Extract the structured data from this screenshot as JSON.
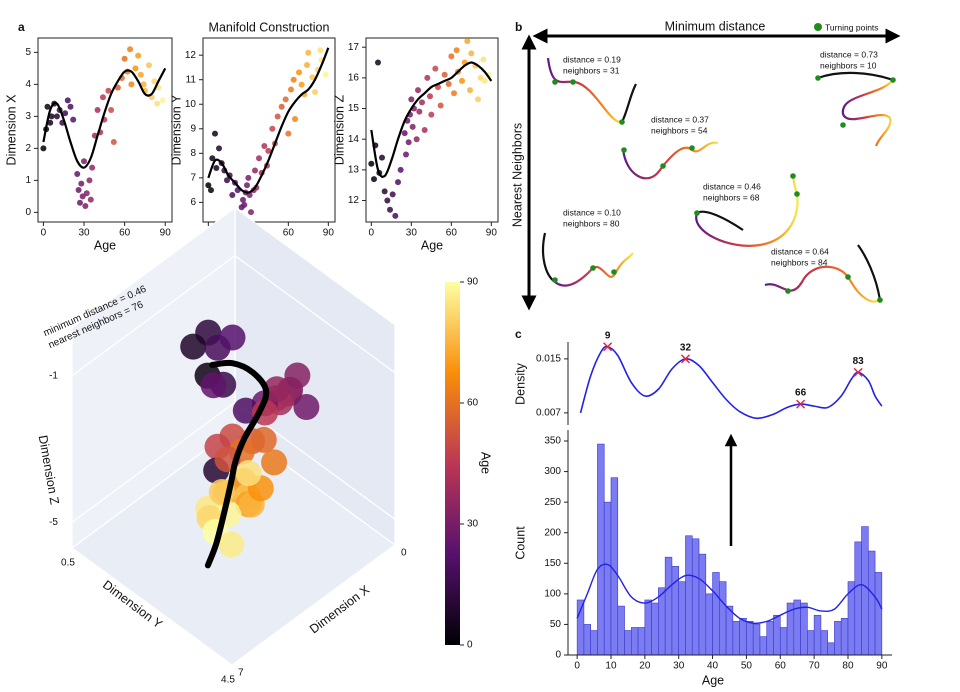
{
  "panel_labels": [
    "a",
    "b",
    "c"
  ],
  "chart_data": [
    {
      "type": "scatter",
      "xlabel": "Age",
      "ylabel": "Dimension X",
      "xlim": [
        -4,
        95
      ],
      "ylim": [
        -0.3,
        5.45
      ],
      "xticks": [
        0,
        30,
        60,
        90
      ],
      "yticks": [
        0,
        1,
        2,
        3,
        4,
        5
      ],
      "colormap": "inferno",
      "clim": [
        0,
        90
      ],
      "x": [
        0,
        2,
        3,
        5,
        6,
        8,
        10,
        12,
        14,
        16,
        18,
        20,
        22,
        25,
        26,
        27,
        28,
        29,
        30,
        31,
        32,
        34,
        35,
        36,
        38,
        40,
        42,
        44,
        45,
        48,
        50,
        52,
        55,
        58,
        60,
        62,
        64,
        65,
        68,
        70,
        72,
        74,
        75,
        78,
        80,
        82,
        84,
        85,
        88
      ],
      "values": [
        2.0,
        2.6,
        3.3,
        2.8,
        3.0,
        3.4,
        3.0,
        3.2,
        2.8,
        3.1,
        3.5,
        3.3,
        2.9,
        1.2,
        0.7,
        0.3,
        0.9,
        0.5,
        1.6,
        0.2,
        0.6,
        1.0,
        0.4,
        1.4,
        2.4,
        3.2,
        2.5,
        3.6,
        2.9,
        3.8,
        3.2,
        2.2,
        3.9,
        4.2,
        4.8,
        4.4,
        5.1,
        4.0,
        4.5,
        4.9,
        4.3,
        4.0,
        3.8,
        4.6,
        3.6,
        4.1,
        3.4,
        3.9,
        3.5
      ],
      "fit": {
        "color": "#000000",
        "x": [
          0,
          5,
          10,
          15,
          20,
          25,
          30,
          35,
          40,
          45,
          50,
          55,
          60,
          65,
          70,
          75,
          80,
          85,
          90
        ],
        "values": [
          2.2,
          3.2,
          3.4,
          2.9,
          2.2,
          1.6,
          1.4,
          1.7,
          2.4,
          3.1,
          3.7,
          4.1,
          4.4,
          4.4,
          4.1,
          3.7,
          3.7,
          4.1,
          4.5
        ]
      }
    },
    {
      "type": "scatter",
      "title": "Manifold Construction",
      "xlabel": "Age",
      "ylabel": "Dimension Y",
      "xlim": [
        -4,
        95
      ],
      "ylim": [
        5.2,
        12.7
      ],
      "xticks": [
        0,
        30,
        60,
        90
      ],
      "yticks": [
        6,
        7,
        8,
        9,
        10,
        11,
        12
      ],
      "colormap": "inferno",
      "clim": [
        0,
        90
      ],
      "x": [
        0,
        2,
        3,
        5,
        6,
        8,
        10,
        12,
        14,
        16,
        18,
        20,
        22,
        25,
        26,
        27,
        28,
        29,
        30,
        31,
        32,
        34,
        35,
        36,
        38,
        40,
        42,
        44,
        45,
        48,
        50,
        52,
        55,
        58,
        60,
        62,
        64,
        65,
        68,
        70,
        72,
        74,
        75,
        78,
        80,
        82,
        84,
        85,
        88
      ],
      "values": [
        6.7,
        6.5,
        7.8,
        8.8,
        7.4,
        8.2,
        7.6,
        7.3,
        6.9,
        7.1,
        6.3,
        6.8,
        6.5,
        5.8,
        6.1,
        5.9,
        6.4,
        6.7,
        7.0,
        6.3,
        5.6,
        6.5,
        7.3,
        6.6,
        7.8,
        7.2,
        8.3,
        7.5,
        8.1,
        9.0,
        8.4,
        9.5,
        9.9,
        10.2,
        8.8,
        10.6,
        11.0,
        9.4,
        11.3,
        10.8,
        10.4,
        11.6,
        12.1,
        11.1,
        10.5,
        11.4,
        12.2,
        11.8,
        11.2
      ],
      "fit": {
        "color": "#000000",
        "x": [
          0,
          5,
          10,
          15,
          20,
          25,
          30,
          35,
          40,
          45,
          50,
          55,
          60,
          65,
          70,
          75,
          80,
          85,
          90
        ],
        "values": [
          7.0,
          7.7,
          7.6,
          7.1,
          6.8,
          6.5,
          6.4,
          6.6,
          7.1,
          7.7,
          8.4,
          9.1,
          9.7,
          10.1,
          10.4,
          10.6,
          11.0,
          11.6,
          12.3
        ]
      }
    },
    {
      "type": "scatter",
      "xlabel": "Age",
      "ylabel": "Dimension Z",
      "xlim": [
        -4,
        95
      ],
      "ylim": [
        11.3,
        17.3
      ],
      "xticks": [
        0,
        30,
        60,
        90
      ],
      "yticks": [
        12,
        13,
        14,
        15,
        16,
        17
      ],
      "colormap": "inferno",
      "clim": [
        0,
        90
      ],
      "x": [
        0,
        2,
        3,
        5,
        6,
        8,
        10,
        12,
        14,
        16,
        18,
        20,
        22,
        25,
        26,
        27,
        28,
        29,
        30,
        31,
        32,
        34,
        35,
        36,
        38,
        40,
        42,
        44,
        45,
        48,
        50,
        52,
        55,
        58,
        60,
        62,
        64,
        65,
        68,
        70,
        72,
        74,
        75,
        78,
        80,
        82,
        84,
        85,
        88
      ],
      "values": [
        13.2,
        12.7,
        13.8,
        16.5,
        12.9,
        13.4,
        12.3,
        12.0,
        11.7,
        12.2,
        11.5,
        12.6,
        13.0,
        14.2,
        13.5,
        14.6,
        13.9,
        14.8,
        15.3,
        14.4,
        15.0,
        14.0,
        15.6,
        14.9,
        15.2,
        14.3,
        16.0,
        15.4,
        14.8,
        16.3,
        15.7,
        15.1,
        16.1,
        15.8,
        16.7,
        15.5,
        16.9,
        16.2,
        15.9,
        16.5,
        17.2,
        15.6,
        16.8,
        16.4,
        15.3,
        16.0,
        16.6,
        15.9,
        16.1
      ],
      "fit": {
        "color": "#000000",
        "x": [
          0,
          5,
          10,
          15,
          20,
          25,
          30,
          35,
          40,
          45,
          50,
          55,
          60,
          65,
          70,
          75,
          80,
          85,
          90
        ],
        "values": [
          14.3,
          13.0,
          12.8,
          13.3,
          14.0,
          14.6,
          15.0,
          15.3,
          15.5,
          15.7,
          15.8,
          15.9,
          16.0,
          16.2,
          16.4,
          16.5,
          16.4,
          16.2,
          15.9
        ]
      }
    },
    {
      "type": "scatter3d",
      "annotation": [
        "minimum distance  = 0.46",
        "nearest neighbors = 76"
      ],
      "xlabel": "Dimension X",
      "ylabel": "Dimension Y",
      "zlabel": "Dimension Z",
      "xlim": [
        7,
        0
      ],
      "ylim": [
        4.5,
        0.5
      ],
      "zlim": [
        -5.7,
        0.3
      ],
      "xticks": [
        0,
        7
      ],
      "yticks": [
        0.5,
        4.5
      ],
      "zticks": [
        -5,
        -1
      ],
      "colormap": "inferno",
      "clim": [
        0,
        90
      ],
      "colorbar_label": "Age",
      "colorbar_ticks": [
        0,
        30,
        60,
        90
      ],
      "points": {
        "x": [
          3.9,
          4.2,
          3.5,
          4.1,
          3.6,
          3.2,
          3.5,
          2.1,
          1.8,
          1.4,
          2.0,
          1.1,
          1.5,
          2.5,
          2.8,
          1.3,
          3.2,
          2.7,
          3.5,
          2.8,
          2.2,
          3.9,
          3.4,
          2.1,
          2.9,
          1.8,
          3.5,
          2.9,
          3.9,
          2.7,
          3.2,
          2.2,
          3.5,
          2.5,
          4.1,
          2.8,
          2.0,
          3.6
        ],
        "y": [
          2.1,
          1.9,
          2.1,
          2.2,
          2.3,
          2.3,
          2.0,
          3.1,
          2.9,
          3.1,
          2.7,
          2.7,
          2.5,
          2.7,
          2.4,
          2.3,
          2.3,
          2.5,
          2.1,
          2.3,
          2.5,
          2.3,
          2.7,
          2.7,
          2.0,
          2.3,
          2.3,
          2.5,
          2.1,
          2.4,
          2.2,
          2.2,
          1.9,
          2.6,
          2.4,
          1.8,
          2.0,
          2.5
        ],
        "z": [
          0.0,
          -0.4,
          -0.6,
          -1.0,
          -1.4,
          -0.3,
          -1.7,
          -1.6,
          -2.0,
          -2.4,
          -2.2,
          -2.0,
          -2.7,
          -2.1,
          -2.4,
          -2.6,
          -3.0,
          -3.2,
          -3.3,
          -3.6,
          -3.4,
          -3.6,
          -3.8,
          -3.9,
          -4.0,
          -3.0,
          -4.4,
          -4.6,
          -4.8,
          -5.0,
          -5.2,
          -5.4,
          -5.4,
          -4.5,
          -5.1,
          -5.1,
          -4.8,
          -5.6
        ],
        "age": [
          12,
          8,
          18,
          3,
          15,
          22,
          25,
          30,
          35,
          28,
          38,
          33,
          40,
          27,
          20,
          36,
          50,
          55,
          48,
          60,
          58,
          10,
          65,
          62,
          52,
          45,
          72,
          78,
          85,
          70,
          88,
          75,
          82,
          68,
          90,
          80,
          84,
          86
        ]
      },
      "trajectory": {
        "color": "#000000",
        "x": [
          3.9,
          3.2,
          2.5,
          2.1,
          2.2,
          2.7,
          2.9,
          2.9,
          3.2,
          3.9,
          4.6
        ],
        "y": [
          2.2,
          2.3,
          2.4,
          2.5,
          2.4,
          2.3,
          2.2,
          2.1,
          2.1,
          2.3,
          2.5
        ],
        "z": [
          -0.8,
          -1.0,
          -1.5,
          -2.1,
          -2.7,
          -3.3,
          -3.9,
          -4.5,
          -5.2,
          -5.6,
          -5.7
        ]
      }
    },
    {
      "type": "line",
      "ylabel": "Density",
      "xlim": [
        -2.7,
        93
      ],
      "ylim": [
        0.0055,
        0.0175
      ],
      "yticks": [
        0.007,
        0.015
      ],
      "color": "#2222e6",
      "x": [
        1,
        4,
        7,
        9,
        12,
        16,
        20,
        24,
        28,
        32,
        36,
        40,
        44,
        48,
        53,
        58,
        62,
        66,
        70,
        74,
        78,
        81,
        83,
        86,
        88,
        90
      ],
      "values": [
        0.007,
        0.0125,
        0.016,
        0.0168,
        0.0155,
        0.0115,
        0.0095,
        0.0105,
        0.0135,
        0.015,
        0.014,
        0.0115,
        0.009,
        0.0072,
        0.0062,
        0.0068,
        0.0078,
        0.0083,
        0.008,
        0.0078,
        0.0095,
        0.012,
        0.013,
        0.0118,
        0.0095,
        0.008
      ],
      "peaks": {
        "color": "#e8253a",
        "x": [
          9,
          32,
          66,
          83
        ],
        "values": [
          0.0168,
          0.015,
          0.0083,
          0.013
        ]
      }
    },
    {
      "type": "histogram",
      "xlabel": "Age",
      "ylabel": "Count",
      "xlim": [
        -2.7,
        93
      ],
      "ylim": [
        0,
        368
      ],
      "xticks": [
        0,
        10,
        20,
        30,
        40,
        50,
        60,
        70,
        80,
        90
      ],
      "yticks": [
        0,
        50,
        100,
        150,
        200,
        250,
        300,
        350
      ],
      "color": "#7b7bf2",
      "edgecolor": "#3a3ac8",
      "bins": [
        0,
        2,
        4,
        6,
        8,
        10,
        12,
        14,
        16,
        18,
        20,
        22,
        24,
        26,
        28,
        30,
        32,
        34,
        36,
        38,
        40,
        42,
        44,
        46,
        48,
        50,
        52,
        54,
        56,
        58,
        60,
        62,
        64,
        66,
        68,
        70,
        72,
        74,
        76,
        78,
        80,
        82,
        84,
        86,
        88,
        90
      ],
      "counts": [
        90,
        50,
        40,
        345,
        250,
        290,
        80,
        40,
        45,
        45,
        90,
        85,
        110,
        160,
        145,
        120,
        195,
        190,
        165,
        100,
        135,
        120,
        80,
        55,
        60,
        55,
        50,
        30,
        55,
        65,
        45,
        85,
        90,
        85,
        40,
        65,
        40,
        20,
        55,
        60,
        120,
        185,
        210,
        170,
        135
      ],
      "kde": {
        "color": "#2222e6",
        "x": [
          0,
          3,
          6,
          9,
          12,
          16,
          20,
          24,
          28,
          32,
          36,
          40,
          44,
          48,
          52,
          56,
          60,
          64,
          68,
          72,
          76,
          80,
          84,
          88,
          90
        ],
        "values": [
          60,
          100,
          140,
          148,
          130,
          95,
          85,
          95,
          115,
          130,
          125,
          105,
          80,
          60,
          52,
          55,
          65,
          75,
          78,
          72,
          75,
          100,
          115,
          95,
          75
        ]
      }
    }
  ],
  "diagram": {
    "x_axis": "Minimum distance",
    "y_axis": "Nearest Neighbors",
    "legend": "Turning points",
    "items": [
      {
        "distance": "distance = 0.19",
        "neighbors": "neighbors = 31"
      },
      {
        "distance": "distance = 0.73",
        "neighbors": "neighbors = 10"
      },
      {
        "distance": "distance = 0.37",
        "neighbors": "neighbors = 54"
      },
      {
        "distance": "distance = 0.46",
        "neighbors": "neighbors = 68"
      },
      {
        "distance": "distance = 0.10",
        "neighbors": "neighbors = 80"
      },
      {
        "distance": "distance = 0.64",
        "neighbors": "neighbors = 84"
      }
    ]
  }
}
